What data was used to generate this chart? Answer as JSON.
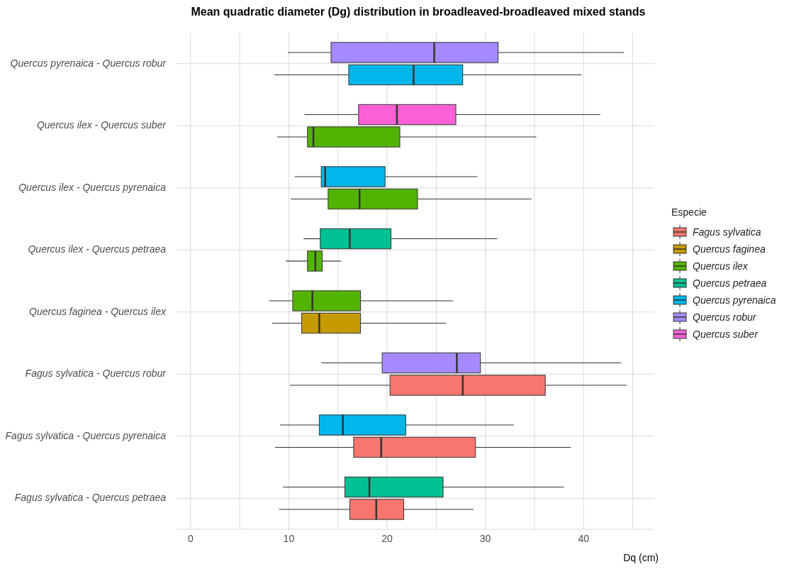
{
  "chart_data": {
    "type": "box",
    "orientation": "horizontal",
    "title": "Mean quadratic diameter (Dg) distribution in broadleaved-broadleaved mixed stands",
    "xlabel": "Dq (cm)",
    "legend_title": "Especie",
    "legend": "right",
    "grid": true,
    "categories": [
      "Quercus pyrenaica - Quercus robur",
      "Quercus ilex - Quercus suber",
      "Quercus ilex - Quercus pyrenaica",
      "Quercus ilex - Quercus petraea",
      "Quercus faginea - Quercus ilex",
      "Fagus sylvatica - Quercus robur",
      "Fagus sylvatica - Quercus pyrenaica",
      "Fagus sylvatica - Quercus petraea"
    ],
    "xlim": [
      -1.5,
      47.2
    ],
    "xticks": [
      0,
      {
        "value": 5,
        "label": null
      },
      10,
      {
        "value": 15,
        "label": null
      },
      20,
      {
        "value": 25,
        "label": null
      },
      30,
      {
        "value": 35,
        "label": null
      },
      40,
      {
        "value": 45,
        "label": null
      }
    ],
    "series": [
      {
        "name": "Fagus sylvatica",
        "color": "#f8766d",
        "boxes": [
          null,
          null,
          null,
          null,
          null,
          {
            "low": 10.1,
            "q1": 20.3,
            "median": 27.7,
            "q3": 36.1,
            "high": 44.4
          },
          {
            "low": 8.6,
            "q1": 16.6,
            "median": 19.4,
            "q3": 29.0,
            "high": 38.7
          },
          {
            "low": 9.0,
            "q1": 16.2,
            "median": 18.9,
            "q3": 21.7,
            "high": 28.8
          }
        ]
      },
      {
        "name": "Quercus faginea",
        "color": "#c49a00",
        "boxes": [
          null,
          null,
          null,
          null,
          {
            "low": 8.3,
            "q1": 11.3,
            "median": 13.1,
            "q3": 17.3,
            "high": 26.0
          },
          null,
          null,
          null
        ]
      },
      {
        "name": "Quercus ilex",
        "color": "#53b400",
        "boxes": [
          null,
          {
            "low": 8.8,
            "q1": 11.9,
            "median": 12.5,
            "q3": 21.3,
            "high": 35.2
          },
          {
            "low": 10.2,
            "q1": 14.0,
            "median": 17.2,
            "q3": 23.1,
            "high": 34.7
          },
          {
            "low": 9.7,
            "q1": 11.9,
            "median": 12.7,
            "q3": 13.4,
            "high": 15.3
          },
          {
            "low": 8.0,
            "q1": 10.4,
            "median": 12.4,
            "q3": 17.3,
            "high": 26.7
          },
          null,
          null,
          null
        ]
      },
      {
        "name": "Quercus petraea",
        "color": "#00c094",
        "boxes": [
          null,
          null,
          null,
          {
            "low": 11.5,
            "q1": 13.2,
            "median": 16.2,
            "q3": 20.4,
            "high": 31.2
          },
          null,
          null,
          null,
          {
            "low": 9.4,
            "q1": 15.7,
            "median": 18.2,
            "q3": 25.7,
            "high": 38.0
          }
        ]
      },
      {
        "name": "Quercus pyrenaica",
        "color": "#00b6eb",
        "boxes": [
          {
            "low": 8.5,
            "q1": 16.1,
            "median": 22.7,
            "q3": 27.7,
            "high": 39.8
          },
          null,
          {
            "low": 10.6,
            "q1": 13.3,
            "median": 13.7,
            "q3": 19.8,
            "high": 29.2
          },
          null,
          null,
          null,
          {
            "low": 9.1,
            "q1": 13.1,
            "median": 15.5,
            "q3": 21.9,
            "high": 32.9
          },
          null
        ]
      },
      {
        "name": "Quercus robur",
        "color": "#a58aff",
        "boxes": [
          {
            "low": 9.9,
            "q1": 14.3,
            "median": 24.8,
            "q3": 31.3,
            "high": 44.1
          },
          null,
          null,
          null,
          null,
          {
            "low": 13.3,
            "q1": 19.5,
            "median": 27.1,
            "q3": 29.5,
            "high": 43.8
          },
          null,
          null
        ]
      },
      {
        "name": "Quercus suber",
        "color": "#fb61d7",
        "boxes": [
          null,
          {
            "low": 11.6,
            "q1": 17.1,
            "median": 21.0,
            "q3": 27.0,
            "high": 41.7
          },
          null,
          null,
          null,
          null,
          null,
          null
        ]
      }
    ]
  }
}
